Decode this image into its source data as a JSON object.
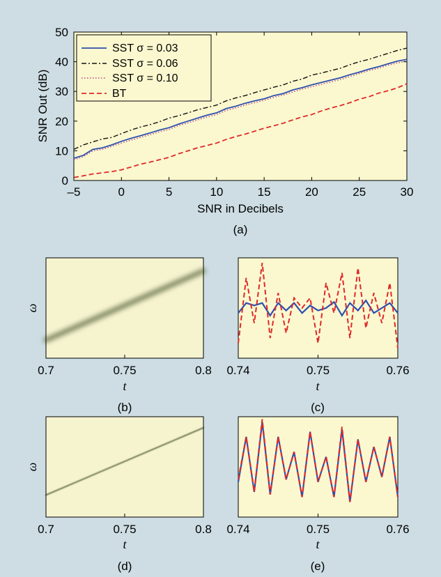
{
  "colors": {
    "background": "#cddde3",
    "plot_bg": "#fbf8cf",
    "tf_bg": "#f6f3cf",
    "sst_003": "#2e4fae",
    "sst_006": "#111111",
    "sst_010": "#b0448a",
    "bt": "#e0282a",
    "ridge": "#6f7a52"
  },
  "chart_data": [
    {
      "id": "a",
      "type": "line",
      "panel_label": "(a)",
      "xlabel": "SNR in Decibels",
      "ylabel": "SNR Out (dB)",
      "xlim": [
        -5,
        30
      ],
      "ylim": [
        0,
        50
      ],
      "xticks": [
        "–5",
        "0",
        "5",
        "10",
        "15",
        "20",
        "25",
        "30"
      ],
      "yticks": [
        "0",
        "10",
        "20",
        "30",
        "40",
        "50"
      ],
      "grid": false,
      "legend_position": "top-left",
      "x": [
        -5,
        -4,
        -3,
        -2,
        -1,
        0,
        1,
        2,
        3,
        4,
        5,
        6,
        7,
        8,
        9,
        10,
        11,
        12,
        13,
        14,
        15,
        16,
        17,
        18,
        19,
        20,
        21,
        22,
        23,
        24,
        25,
        26,
        27,
        28,
        29,
        30
      ],
      "series": [
        {
          "name": "SST σ = 0.03",
          "style": "solid",
          "color": "#2e4fae",
          "values": [
            7.5,
            8.5,
            10.5,
            11,
            12,
            13.2,
            14.2,
            15.1,
            16,
            17,
            17.8,
            19,
            20,
            21,
            22,
            22.8,
            24.2,
            25,
            26,
            26.8,
            27.5,
            28.6,
            29.3,
            30.5,
            31.3,
            32.2,
            33,
            33.8,
            34.6,
            35.6,
            36.5,
            37.5,
            38.3,
            39.3,
            40.2,
            40.8
          ]
        },
        {
          "name": "SST σ = 0.06",
          "style": "dashdot",
          "color": "#111111",
          "values": [
            10.5,
            12,
            13,
            14,
            14.5,
            15.8,
            17,
            18,
            18.8,
            19.8,
            21,
            21.8,
            22.8,
            23.8,
            24.6,
            25.4,
            26.8,
            27.8,
            28.6,
            29.6,
            30.5,
            31.4,
            32.2,
            33.4,
            34.2,
            35.5,
            36.2,
            37,
            37.8,
            39,
            40,
            40.8,
            41.8,
            42.8,
            43.8,
            44.6
          ]
        },
        {
          "name": "SST σ = 0.10",
          "style": "dotted",
          "color": "#b0448a",
          "values": [
            7,
            8,
            10,
            10.5,
            11.5,
            12.6,
            13.6,
            14.5,
            15.4,
            16.4,
            17.2,
            18.5,
            19.4,
            20.4,
            21.4,
            22.2,
            23.6,
            24.4,
            25.4,
            26.2,
            27,
            28,
            28.8,
            29.8,
            30.8,
            31.6,
            32.4,
            33.2,
            34,
            35,
            36,
            37,
            37.8,
            38.8,
            39.6,
            40.2
          ]
        },
        {
          "name": "BT",
          "style": "dashed",
          "color": "#e0282a",
          "values": [
            1,
            1.6,
            2.2,
            2.6,
            3,
            3.6,
            4.5,
            5.5,
            6.2,
            7,
            7.8,
            9,
            10,
            11,
            11.8,
            12.6,
            13.8,
            14.8,
            15.6,
            16.6,
            17.6,
            18.4,
            19.3,
            20.4,
            21.4,
            22.2,
            23.4,
            24.4,
            25.2,
            26.2,
            27.4,
            28.2,
            29.4,
            30.2,
            31.2,
            32.6
          ]
        }
      ]
    },
    {
      "id": "b",
      "type": "heatmap",
      "panel_label": "(b)",
      "xlabel": "t",
      "ylabel": "ω",
      "xlim": [
        0.7,
        0.8
      ],
      "xticks": [
        "0.7",
        "0.75",
        "0.8"
      ],
      "ridge_start": [
        0.7,
        0.18
      ],
      "ridge_end": [
        0.8,
        0.87
      ],
      "ridge_width": "wide"
    },
    {
      "id": "c",
      "type": "line",
      "panel_label": "(c)",
      "xlabel": "t",
      "xlim": [
        0.74,
        0.76
      ],
      "xticks": [
        "0.74",
        "0.75",
        "0.76"
      ],
      "ylim": [
        -1,
        1
      ],
      "x": [
        0.74,
        0.741,
        0.742,
        0.743,
        0.744,
        0.745,
        0.746,
        0.747,
        0.748,
        0.749,
        0.75,
        0.751,
        0.752,
        0.753,
        0.754,
        0.755,
        0.756,
        0.757,
        0.758,
        0.759,
        0.76
      ],
      "series": [
        {
          "name": "",
          "style": "solid",
          "color": "#2e4fae",
          "values": [
            -0.1,
            0.1,
            0.05,
            0.1,
            -0.15,
            0.1,
            -0.05,
            0.1,
            -0.1,
            0.05,
            -0.05,
            0.0,
            0.12,
            -0.15,
            0.1,
            -0.05,
            0.15,
            -0.1,
            0.0,
            0.1,
            -0.1
          ]
        },
        {
          "name": "",
          "style": "dashed",
          "color": "#e0282a",
          "values": [
            -0.7,
            0.6,
            -0.3,
            0.9,
            -0.6,
            0.3,
            -0.5,
            0.2,
            0.0,
            0.2,
            -0.7,
            0.5,
            -0.1,
            0.7,
            -0.6,
            0.8,
            -0.4,
            0.3,
            -0.3,
            0.5,
            -0.8
          ]
        }
      ]
    },
    {
      "id": "d",
      "type": "heatmap",
      "panel_label": "(d)",
      "xlabel": "t",
      "ylabel": "ω",
      "xlim": [
        0.7,
        0.8
      ],
      "xticks": [
        "0.7",
        "0.75",
        "0.8"
      ],
      "ridge_start": [
        0.7,
        0.22
      ],
      "ridge_end": [
        0.8,
        0.89
      ],
      "ridge_width": "narrow"
    },
    {
      "id": "e",
      "type": "line",
      "panel_label": "(e)",
      "xlabel": "t",
      "xlim": [
        0.74,
        0.76
      ],
      "xticks": [
        "0.74",
        "0.75",
        "0.76"
      ],
      "ylim": [
        -1,
        1
      ],
      "x": [
        0.74,
        0.741,
        0.742,
        0.743,
        0.744,
        0.745,
        0.746,
        0.747,
        0.748,
        0.749,
        0.75,
        0.751,
        0.752,
        0.753,
        0.754,
        0.755,
        0.756,
        0.757,
        0.758,
        0.759,
        0.76
      ],
      "series": [
        {
          "name": "",
          "style": "solid",
          "color": "#2e4fae",
          "values": [
            -0.3,
            0.6,
            -0.5,
            0.9,
            -0.55,
            0.6,
            -0.25,
            0.3,
            -0.6,
            0.7,
            -0.3,
            0.2,
            -0.6,
            0.75,
            -0.7,
            0.55,
            -0.3,
            0.4,
            -0.2,
            0.6,
            -0.6
          ]
        },
        {
          "name": "",
          "style": "dashed",
          "color": "#e0282a",
          "values": [
            -0.25,
            0.6,
            -0.5,
            0.95,
            -0.55,
            0.6,
            -0.25,
            0.3,
            -0.6,
            0.7,
            -0.3,
            0.2,
            -0.6,
            0.8,
            -0.7,
            0.55,
            -0.3,
            0.4,
            -0.2,
            0.6,
            -0.6
          ]
        }
      ]
    }
  ]
}
